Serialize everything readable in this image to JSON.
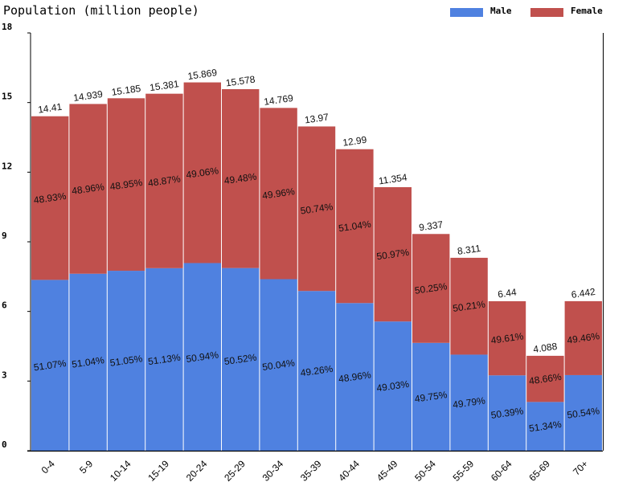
{
  "chart_data": {
    "type": "bar",
    "stacked": true,
    "title": "Population (million people)",
    "categories": [
      "0-4",
      "5-9",
      "10-14",
      "15-19",
      "20-24",
      "25-29",
      "30-34",
      "35-39",
      "40-44",
      "45-49",
      "50-54",
      "55-59",
      "60-64",
      "65-69",
      "70+"
    ],
    "totals": [
      14.41,
      14.939,
      15.185,
      15.381,
      15.869,
      15.578,
      14.769,
      13.97,
      12.99,
      11.354,
      9.337,
      8.311,
      6.44,
      4.088,
      6.442
    ],
    "totals_labels": [
      "14.41",
      "14.939",
      "15.185",
      "15.381",
      "15.869",
      "15.578",
      "14.769",
      "13.97",
      "12.99",
      "11.354",
      "9.337",
      "8.311",
      "6.44",
      "4.088",
      "6.442"
    ],
    "series": [
      {
        "name": "Male",
        "color": "#4f81e0",
        "percent_labels": [
          "51.07%",
          "51.04%",
          "51.05%",
          "51.13%",
          "50.94%",
          "50.52%",
          "50.04%",
          "49.26%",
          "48.96%",
          "49.03%",
          "49.75%",
          "49.79%",
          "50.39%",
          "51.34%",
          "50.54%"
        ]
      },
      {
        "name": "Female",
        "color": "#c0504d",
        "percent_labels": [
          "48.93%",
          "48.96%",
          "48.95%",
          "48.87%",
          "49.06%",
          "49.48%",
          "49.96%",
          "50.74%",
          "51.04%",
          "50.97%",
          "50.25%",
          "50.21%",
          "49.61%",
          "48.66%",
          "49.46%"
        ]
      }
    ],
    "ylim": [
      0,
      18
    ],
    "yticks": [
      "0",
      "3",
      "6",
      "9",
      "12",
      "15",
      "18"
    ],
    "grid": false,
    "legend": "top-right"
  }
}
